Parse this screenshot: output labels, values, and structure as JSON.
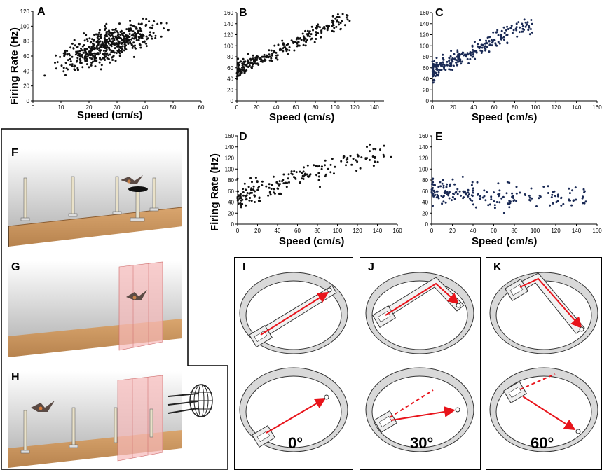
{
  "panels": {
    "A": "A",
    "B": "B",
    "C": "C",
    "D": "D",
    "E": "E",
    "F": "F",
    "G": "G",
    "H": "H",
    "I": "I",
    "J": "J",
    "K": "K"
  },
  "labels": {
    "firing_rate": "Firing Rate (Hz)",
    "speed": "Speed (cm/s)",
    "angle_i": "0°",
    "angle_j": "30°",
    "angle_k": "60°"
  },
  "colors": {
    "dots_dark": "#111111",
    "dots_navy": "#1a2a55",
    "arrow": "#e8141b",
    "wall_pink": "#f4c4c4",
    "floor": "#c8935c"
  },
  "chart_data": [
    {
      "id": "A",
      "type": "scatter",
      "xlabel": "Speed (cm/s)",
      "ylabel": "Firing Rate (Hz)",
      "xlim": [
        0,
        60
      ],
      "ylim": [
        0,
        120
      ],
      "xticks": [
        "0",
        "10",
        "20",
        "30",
        "40",
        "50",
        "60"
      ],
      "yticks": [
        "0",
        "20",
        "40",
        "60",
        "80",
        "100",
        "120"
      ],
      "trend": {
        "intercept": 42,
        "slope": 1.2,
        "noise": 14,
        "n": 520,
        "xmax": 55
      }
    },
    {
      "id": "B",
      "type": "scatter",
      "xlabel": "Speed (cm/s)",
      "ylabel": "",
      "xlim": [
        0,
        150
      ],
      "ylim": [
        0,
        160
      ],
      "xticks": [
        "0",
        "20",
        "40",
        "60",
        "80",
        "100",
        "120",
        "140"
      ],
      "yticks": [
        "0",
        "20",
        "40",
        "60",
        "80",
        "100",
        "120",
        "140",
        "160"
      ],
      "trend": {
        "intercept": 55,
        "slope": 0.85,
        "noise": 11,
        "n": 260,
        "xmax": 115
      }
    },
    {
      "id": "C",
      "type": "scatter",
      "xlabel": "Speed (cm/s)",
      "ylabel": "",
      "xlim": [
        0,
        160
      ],
      "ylim": [
        0,
        160
      ],
      "xticks": [
        "0",
        "20",
        "40",
        "60",
        "80",
        "100",
        "120",
        "140",
        "160"
      ],
      "yticks": [
        "0",
        "20",
        "40",
        "60",
        "80",
        "100",
        "120",
        "140",
        "160"
      ],
      "trend": {
        "intercept": 55,
        "slope": 0.9,
        "noise": 12,
        "n": 260,
        "xmax": 98
      }
    },
    {
      "id": "D",
      "type": "scatter",
      "xlabel": "Speed (cm/s)",
      "ylabel": "Firing Rate (Hz)",
      "xlim": [
        0,
        160
      ],
      "ylim": [
        0,
        160
      ],
      "xticks": [
        "0",
        "20",
        "40",
        "60",
        "80",
        "100",
        "120",
        "140",
        "160"
      ],
      "yticks": [
        "0",
        "20",
        "40",
        "60",
        "80",
        "100",
        "120",
        "140",
        "160"
      ],
      "trend": {
        "intercept": 50,
        "slope": 0.55,
        "noise": 16,
        "n": 190,
        "xmax": 155
      }
    },
    {
      "id": "E",
      "type": "scatter",
      "xlabel": "Speed (cm/s)",
      "ylabel": "",
      "xlim": [
        0,
        160
      ],
      "ylim": [
        0,
        160
      ],
      "xticks": [
        "0",
        "20",
        "40",
        "60",
        "80",
        "100",
        "120",
        "140",
        "160"
      ],
      "yticks": [
        "0",
        "20",
        "40",
        "60",
        "80",
        "100",
        "120",
        "140",
        "160"
      ],
      "trend": {
        "intercept": 58,
        "slope": -0.08,
        "noise": 16,
        "n": 190,
        "xmax": 150
      }
    }
  ]
}
